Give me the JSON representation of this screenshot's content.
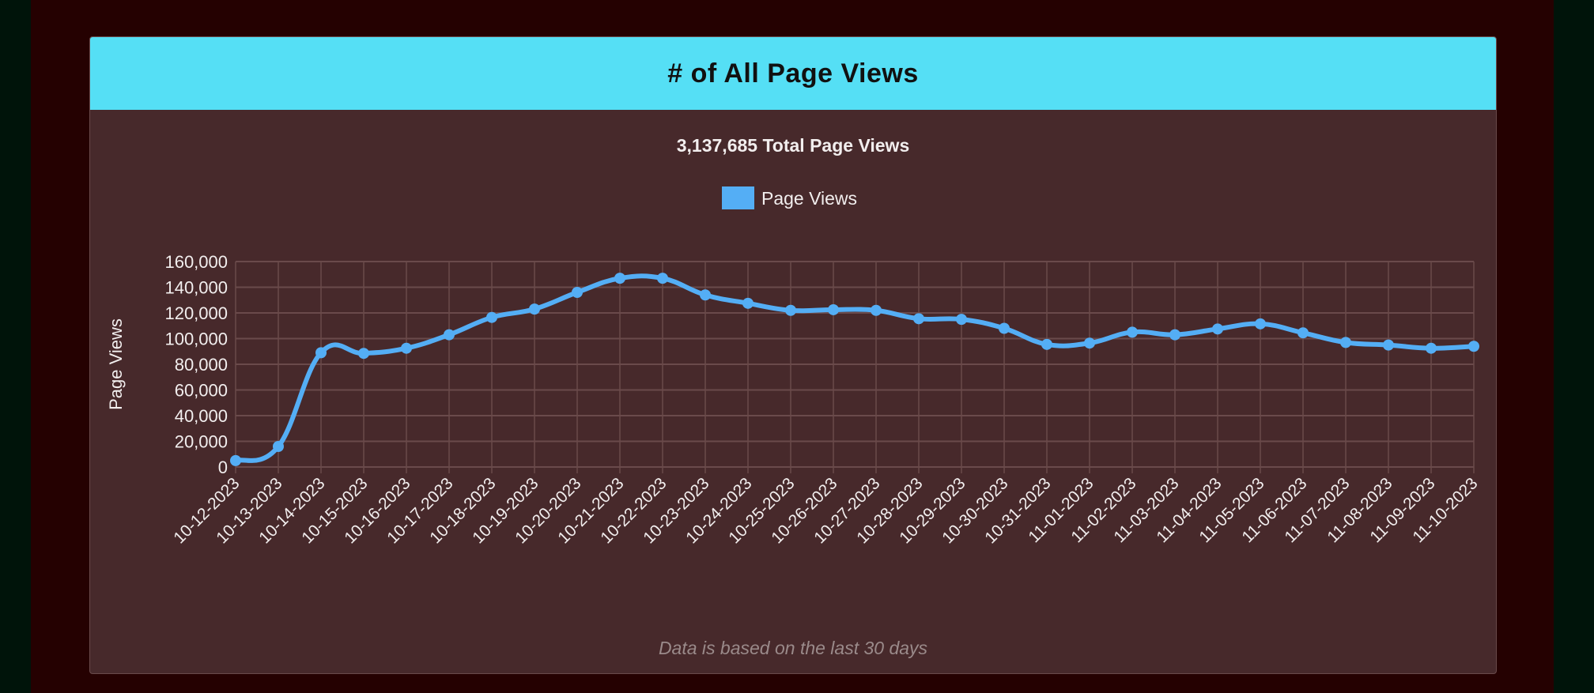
{
  "card": {
    "title": "# of All Page Views",
    "footer": "Data is based on the last 30 days"
  },
  "colors": {
    "header": "#55dff5",
    "line": "#54aef5",
    "panel": "#47292b"
  },
  "chart_data": {
    "type": "line",
    "title": "3,137,685 Total Page Views",
    "ylabel": "Page Views",
    "xlabel": "",
    "ylim": [
      0,
      160000
    ],
    "yticks": [
      "0",
      "20,000",
      "40,000",
      "60,000",
      "80,000",
      "100,000",
      "120,000",
      "140,000",
      "160,000"
    ],
    "grid": true,
    "legend": "top",
    "smooth": true,
    "categories": [
      "10-12-2023",
      "10-13-2023",
      "10-14-2023",
      "10-15-2023",
      "10-16-2023",
      "10-17-2023",
      "10-18-2023",
      "10-19-2023",
      "10-20-2023",
      "10-21-2023",
      "10-22-2023",
      "10-23-2023",
      "10-24-2023",
      "10-25-2023",
      "10-26-2023",
      "10-27-2023",
      "10-28-2023",
      "10-29-2023",
      "10-30-2023",
      "10-31-2023",
      "11-01-2023",
      "11-02-2023",
      "11-03-2023",
      "11-04-2023",
      "11-05-2023",
      "11-06-2023",
      "11-07-2023",
      "11-08-2023",
      "11-09-2023",
      "11-10-2023"
    ],
    "series": [
      {
        "name": "Page Views",
        "color": "#54aef5",
        "values": [
          5000,
          16000,
          89000,
          88500,
          92500,
          103000,
          116500,
          123000,
          136000,
          147000,
          147000,
          134000,
          127500,
          122000,
          122500,
          122000,
          115500,
          115000,
          108000,
          95500,
          96500,
          105000,
          103000,
          107500,
          111500,
          104500,
          97000,
          95000,
          92500,
          94000
        ]
      }
    ]
  }
}
